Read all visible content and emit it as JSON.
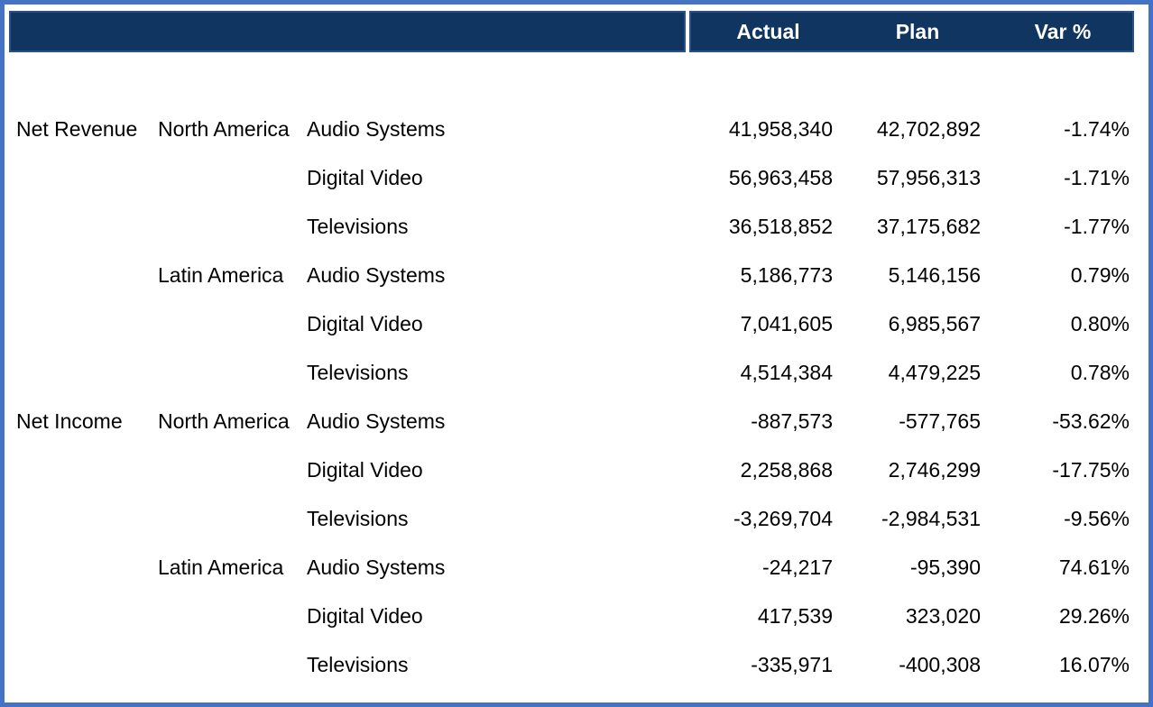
{
  "colors": {
    "outer_border": "#4472C4",
    "header_background": "#0F3560",
    "header_border": "#2B5284",
    "header_text": "#FFFFFF",
    "body_text": "#000000",
    "body_background": "#FFFFFF"
  },
  "table": {
    "column_headers": [
      "Actual",
      "Plan",
      "Var %"
    ]
  },
  "chart_data": {
    "type": "table",
    "columns": [
      "",
      "",
      "",
      "Actual",
      "Plan",
      "Var %"
    ],
    "grouping": [
      "measure",
      "region",
      "product"
    ],
    "rows": [
      [
        "Net Revenue",
        "North America",
        "Audio Systems",
        "41,958,340",
        "42,702,892",
        "-1.74%"
      ],
      [
        "Net Revenue",
        "North America",
        "Digital Video",
        "56,963,458",
        "57,956,313",
        "-1.71%"
      ],
      [
        "Net Revenue",
        "North America",
        "Televisions",
        "36,518,852",
        "37,175,682",
        "-1.77%"
      ],
      [
        "Net Revenue",
        "Latin America",
        "Audio Systems",
        "5,186,773",
        "5,146,156",
        "0.79%"
      ],
      [
        "Net Revenue",
        "Latin America",
        "Digital Video",
        "7,041,605",
        "6,985,567",
        "0.80%"
      ],
      [
        "Net Revenue",
        "Latin America",
        "Televisions",
        "4,514,384",
        "4,479,225",
        "0.78%"
      ],
      [
        "Net Income",
        "North America",
        "Audio Systems",
        "-887,573",
        "-577,765",
        "-53.62%"
      ],
      [
        "Net Income",
        "North America",
        "Digital Video",
        "2,258,868",
        "2,746,299",
        "-17.75%"
      ],
      [
        "Net Income",
        "North America",
        "Televisions",
        "-3,269,704",
        "-2,984,531",
        "-9.56%"
      ],
      [
        "Net Income",
        "Latin America",
        "Audio Systems",
        "-24,217",
        "-95,390",
        "74.61%"
      ],
      [
        "Net Income",
        "Latin America",
        "Digital Video",
        "417,539",
        "323,020",
        "29.26%"
      ],
      [
        "Net Income",
        "Latin America",
        "Televisions",
        "-335,971",
        "-400,308",
        "16.07%"
      ]
    ]
  }
}
